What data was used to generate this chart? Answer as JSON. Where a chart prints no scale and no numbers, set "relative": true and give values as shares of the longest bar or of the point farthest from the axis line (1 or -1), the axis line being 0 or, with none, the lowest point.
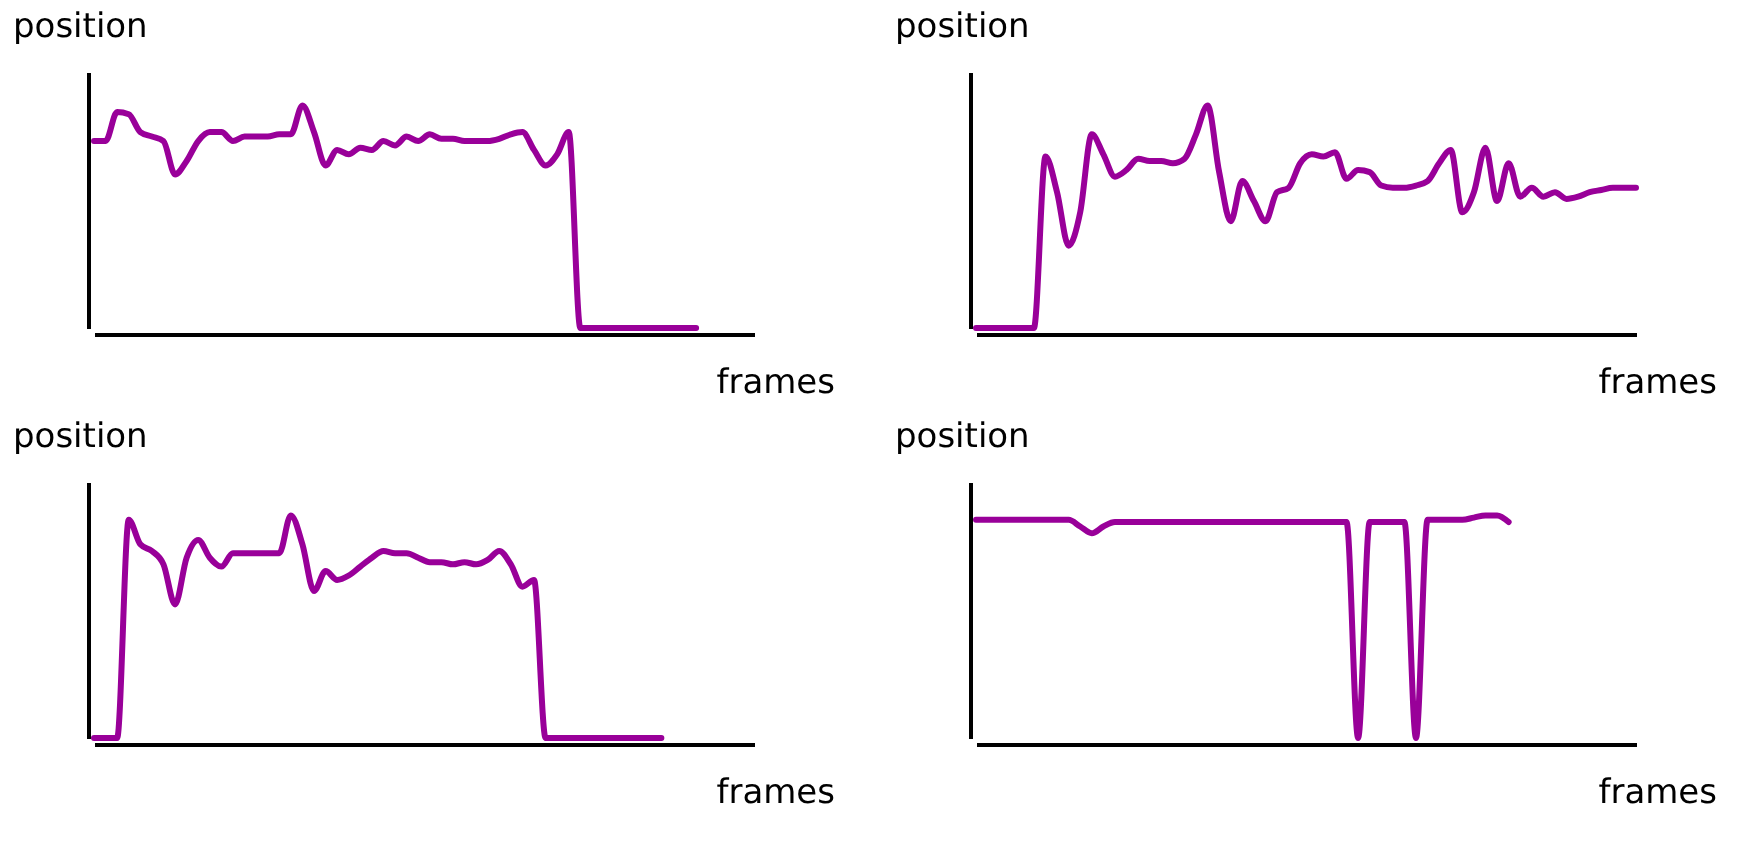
{
  "chart_data": [
    {
      "type": "line",
      "relative": true,
      "xlabel": "frames",
      "ylabel": "position",
      "color": "#990099",
      "categories": [
        null,
        null,
        null,
        null,
        null,
        null,
        null,
        null,
        null,
        null,
        null,
        null,
        null,
        null,
        null,
        null,
        null,
        null,
        null,
        null,
        null,
        null,
        null,
        null,
        null,
        null,
        null,
        null,
        null,
        null,
        null,
        null,
        null,
        null,
        null,
        null,
        null,
        null,
        null,
        null,
        null,
        null,
        null,
        null,
        null,
        null,
        null,
        null,
        null,
        null,
        null,
        null,
        null,
        null,
        null,
        null,
        null,
        null
      ],
      "values": [
        0.84,
        0.84,
        0.97,
        0.96,
        0.88,
        0.86,
        0.84,
        0.69,
        0.75,
        0.84,
        0.88,
        0.88,
        0.84,
        0.86,
        0.86,
        0.86,
        0.87,
        0.87,
        1,
        0.88,
        0.73,
        0.8,
        0.78,
        0.81,
        0.8,
        0.84,
        0.82,
        0.86,
        0.84,
        0.87,
        0.85,
        0.85,
        0.84,
        0.84,
        0.84,
        0.85,
        0.87,
        0.88,
        0.8,
        0.73,
        0.78,
        0.88,
        0,
        0,
        0,
        0,
        0,
        0,
        0,
        0,
        0,
        0,
        0,
        null,
        null,
        null,
        null,
        null
      ]
    },
    {
      "type": "line",
      "relative": true,
      "xlabel": "frames",
      "ylabel": "position",
      "color": "#990099",
      "categories": [
        null,
        null,
        null,
        null,
        null,
        null,
        null,
        null,
        null,
        null,
        null,
        null,
        null,
        null,
        null,
        null,
        null,
        null,
        null,
        null,
        null,
        null,
        null,
        null,
        null,
        null,
        null,
        null,
        null,
        null,
        null,
        null,
        null,
        null,
        null,
        null,
        null,
        null,
        null,
        null,
        null,
        null,
        null,
        null,
        null,
        null,
        null,
        null,
        null,
        null,
        null,
        null,
        null,
        null,
        null,
        null,
        null,
        null
      ],
      "values": [
        0,
        0,
        0,
        0,
        0,
        0,
        0.77,
        0.61,
        0.37,
        0.52,
        0.87,
        0.78,
        0.68,
        0.71,
        0.76,
        0.75,
        0.75,
        0.74,
        0.76,
        0.87,
        1,
        0.7,
        0.48,
        0.66,
        0.57,
        0.48,
        0.61,
        0.63,
        0.74,
        0.78,
        0.77,
        0.79,
        0.67,
        0.71,
        0.7,
        0.64,
        0.63,
        0.63,
        0.64,
        0.66,
        0.74,
        0.8,
        0.52,
        0.61,
        0.81,
        0.57,
        0.74,
        0.59,
        0.63,
        0.59,
        0.61,
        0.58,
        0.59,
        0.61,
        0.62,
        0.63,
        0.63,
        0.63
      ]
    },
    {
      "type": "line",
      "relative": true,
      "xlabel": "frames",
      "ylabel": "position",
      "color": "#990099",
      "categories": [
        null,
        null,
        null,
        null,
        null,
        null,
        null,
        null,
        null,
        null,
        null,
        null,
        null,
        null,
        null,
        null,
        null,
        null,
        null,
        null,
        null,
        null,
        null,
        null,
        null,
        null,
        null,
        null,
        null,
        null,
        null,
        null,
        null,
        null,
        null,
        null,
        null,
        null,
        null,
        null,
        null,
        null,
        null,
        null,
        null,
        null,
        null,
        null,
        null,
        null,
        null,
        null,
        null,
        null,
        null,
        null,
        null,
        null
      ],
      "values": [
        0,
        0,
        0,
        0.98,
        0.87,
        0.84,
        0.78,
        0.6,
        0.81,
        0.89,
        0.81,
        0.77,
        0.83,
        0.83,
        0.83,
        0.83,
        0.83,
        1,
        0.87,
        0.66,
        0.75,
        0.71,
        0.73,
        0.77,
        0.81,
        0.84,
        0.83,
        0.83,
        0.81,
        0.79,
        0.79,
        0.78,
        0.79,
        0.78,
        0.8,
        0.84,
        0.78,
        0.68,
        0.71,
        0,
        0,
        0,
        0,
        0,
        0,
        0,
        0,
        0,
        0,
        0,
        null,
        null,
        null,
        null,
        null,
        null,
        null,
        null
      ]
    },
    {
      "type": "line",
      "relative": true,
      "xlabel": "frames",
      "ylabel": "position",
      "color": "#990099",
      "categories": [
        null,
        null,
        null,
        null,
        null,
        null,
        null,
        null,
        null,
        null,
        null,
        null,
        null,
        null,
        null,
        null,
        null,
        null,
        null,
        null,
        null,
        null,
        null,
        null,
        null,
        null,
        null,
        null,
        null,
        null,
        null,
        null,
        null,
        null,
        null,
        null,
        null,
        null,
        null,
        null,
        null,
        null,
        null,
        null,
        null,
        null,
        null,
        null,
        null,
        null,
        null,
        null,
        null,
        null,
        null,
        null,
        null,
        null
      ],
      "values": [
        0.98,
        0.98,
        0.98,
        0.98,
        0.98,
        0.98,
        0.98,
        0.98,
        0.98,
        0.95,
        0.92,
        0.95,
        0.97,
        0.97,
        0.97,
        0.97,
        0.97,
        0.97,
        0.97,
        0.97,
        0.97,
        0.97,
        0.97,
        0.97,
        0.97,
        0.97,
        0.97,
        0.97,
        0.97,
        0.97,
        0.97,
        0.97,
        0.97,
        0,
        0.97,
        0.97,
        0.97,
        0.97,
        0,
        0.98,
        0.98,
        0.98,
        0.98,
        0.99,
        1,
        1,
        0.97,
        null,
        null,
        null,
        null,
        null,
        null,
        null,
        null,
        null,
        null,
        null
      ]
    }
  ]
}
